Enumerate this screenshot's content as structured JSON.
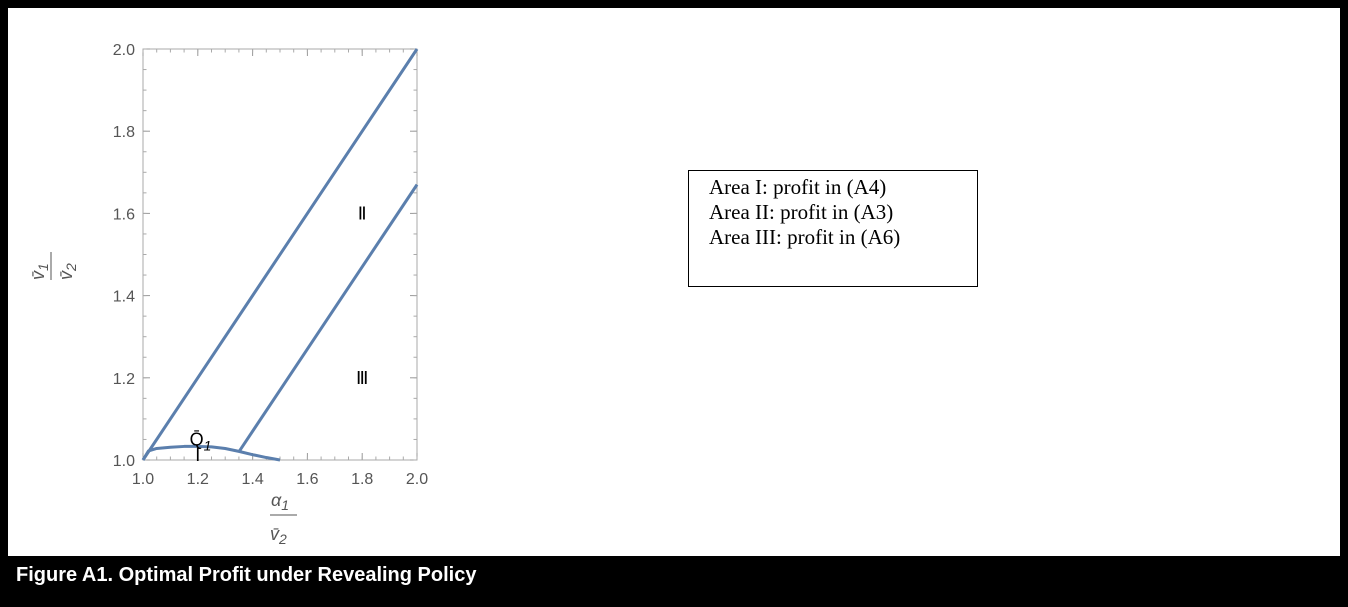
{
  "caption": "Figure A1. Optimal Profit under Revealing Policy",
  "legend": {
    "lines": [
      "Area I: profit in (A4)",
      "Area II: profit in (A3)",
      "Area III: profit in (A6)"
    ]
  },
  "chart_data": {
    "type": "line",
    "title": "",
    "xlabel": {
      "num": "α",
      "num_sub": "1",
      "den": "v̄",
      "den_sub": "2"
    },
    "ylabel": {
      "num": "v̄",
      "num_sub": "1",
      "den": "v̄",
      "den_sub": "2"
    },
    "xlim": [
      1.0,
      2.0
    ],
    "ylim": [
      1.0,
      2.0
    ],
    "xticks": [
      "1.0",
      "1.2",
      "1.4",
      "1.6",
      "1.8",
      "2.0"
    ],
    "yticks": [
      "1.0",
      "1.2",
      "1.4",
      "1.6",
      "1.8",
      "2.0"
    ],
    "grid": false,
    "color": "#5b7fad",
    "series": [
      {
        "x": [
          1.0,
          2.0
        ],
        "y": [
          1.0,
          2.0
        ]
      },
      {
        "x": [
          1.35,
          2.0
        ],
        "y": [
          1.02,
          1.67
        ]
      },
      {
        "x": [
          1.0,
          1.02,
          1.05,
          1.1,
          1.15,
          1.2,
          1.25,
          1.3,
          1.35,
          1.4,
          1.45,
          1.5
        ],
        "y": [
          1.0,
          1.022,
          1.028,
          1.031,
          1.033,
          1.033,
          1.032,
          1.028,
          1.021,
          1.013,
          1.006,
          1.0
        ]
      }
    ],
    "annotations": [
      {
        "text": "Ⅱ",
        "x": 1.8,
        "y": 1.6
      },
      {
        "text": "Ⅲ",
        "x": 1.8,
        "y": 1.2
      },
      {
        "text": "I",
        "x": 1.2,
        "y": 1.012
      },
      {
        "text": "Q̄",
        "sub": "1",
        "x": 1.21,
        "y": 1.05
      }
    ]
  }
}
